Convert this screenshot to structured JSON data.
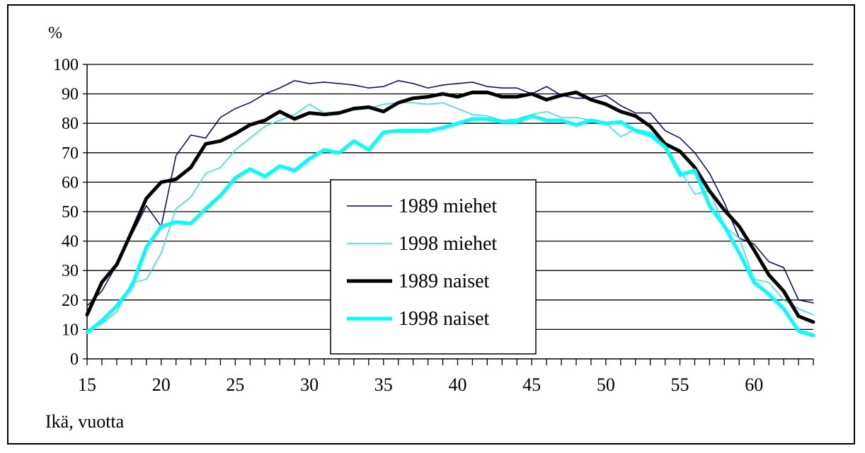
{
  "chart_data": {
    "type": "line",
    "ylabel": "%",
    "xlabel": "Ikä, vuotta",
    "ylim": [
      0,
      100
    ],
    "yticks": [
      "0",
      "10",
      "20",
      "30",
      "40",
      "50",
      "60",
      "70",
      "80",
      "90",
      "100"
    ],
    "xlim": [
      15,
      64
    ],
    "xticks": [
      "15",
      "20",
      "25",
      "30",
      "35",
      "40",
      "45",
      "50",
      "55",
      "60"
    ],
    "grid": "horizontal",
    "legend": "center",
    "x": [
      15,
      16,
      17,
      18,
      19,
      20,
      21,
      22,
      23,
      24,
      25,
      26,
      27,
      28,
      29,
      30,
      31,
      32,
      33,
      34,
      35,
      36,
      37,
      38,
      39,
      40,
      41,
      42,
      43,
      44,
      45,
      46,
      47,
      48,
      49,
      50,
      51,
      52,
      53,
      54,
      55,
      56,
      57,
      58,
      59,
      60,
      61,
      62,
      63,
      64
    ],
    "series": [
      {
        "name": "1989 miehet",
        "color": "#000080",
        "width": 1.5,
        "values": [
          18,
          23,
          32,
          42,
          52,
          45,
          69,
          76,
          75,
          82,
          85,
          87,
          90,
          92,
          94.5,
          93.5,
          94,
          93.5,
          93,
          92,
          92.5,
          94.5,
          93.5,
          92,
          93,
          93.5,
          94,
          92.5,
          92,
          92,
          90,
          92.5,
          89.5,
          88.5,
          88.5,
          89.5,
          86,
          83.5,
          83.5,
          77.5,
          75,
          70,
          63,
          53,
          41,
          39,
          33,
          31,
          20,
          19
        ]
      },
      {
        "name": "1998 miehet",
        "color": "#33e0e0",
        "width": 1.5,
        "values": [
          10,
          12,
          16,
          26,
          27,
          36,
          51,
          55,
          63,
          65,
          71,
          75,
          79,
          81,
          83,
          86.5,
          83.5,
          84,
          84.5,
          85,
          86.5,
          87,
          87,
          86.5,
          87,
          85,
          83,
          82.5,
          81,
          81.5,
          83,
          84,
          82,
          82,
          81,
          80,
          75.5,
          78,
          77,
          73,
          64,
          56,
          57,
          45,
          41,
          27,
          26,
          20,
          17,
          15
        ]
      },
      {
        "name": "1989 naiset",
        "color": "#000000",
        "width": 5,
        "values": [
          15,
          26,
          32,
          43,
          54.5,
          60,
          61,
          65,
          73,
          74,
          76.5,
          79.5,
          81,
          84,
          81.5,
          83.5,
          83,
          83.5,
          85,
          85.5,
          84,
          87,
          88.5,
          89,
          90,
          89,
          90.5,
          90.5,
          89,
          89,
          90,
          88,
          89.5,
          90.5,
          88,
          86.5,
          84,
          82.5,
          79,
          73,
          70.5,
          65,
          57,
          50.5,
          45,
          37,
          28.5,
          23,
          14.5,
          12.5
        ]
      },
      {
        "name": "1998 naiset",
        "color": "#00ffff",
        "width": 5,
        "values": [
          9,
          13,
          18,
          24.5,
          38,
          45,
          46.5,
          46,
          51,
          55.5,
          61.5,
          64.5,
          62,
          65.5,
          64,
          68,
          71,
          70,
          74,
          71,
          77,
          77.5,
          77.5,
          77.5,
          78.5,
          80,
          81.5,
          81.5,
          80.5,
          80.5,
          82.5,
          81,
          81,
          79.5,
          81,
          80,
          80.5,
          77.5,
          76,
          72,
          62.5,
          64,
          52,
          45,
          36,
          26,
          22,
          17,
          9.5,
          8
        ]
      }
    ]
  }
}
